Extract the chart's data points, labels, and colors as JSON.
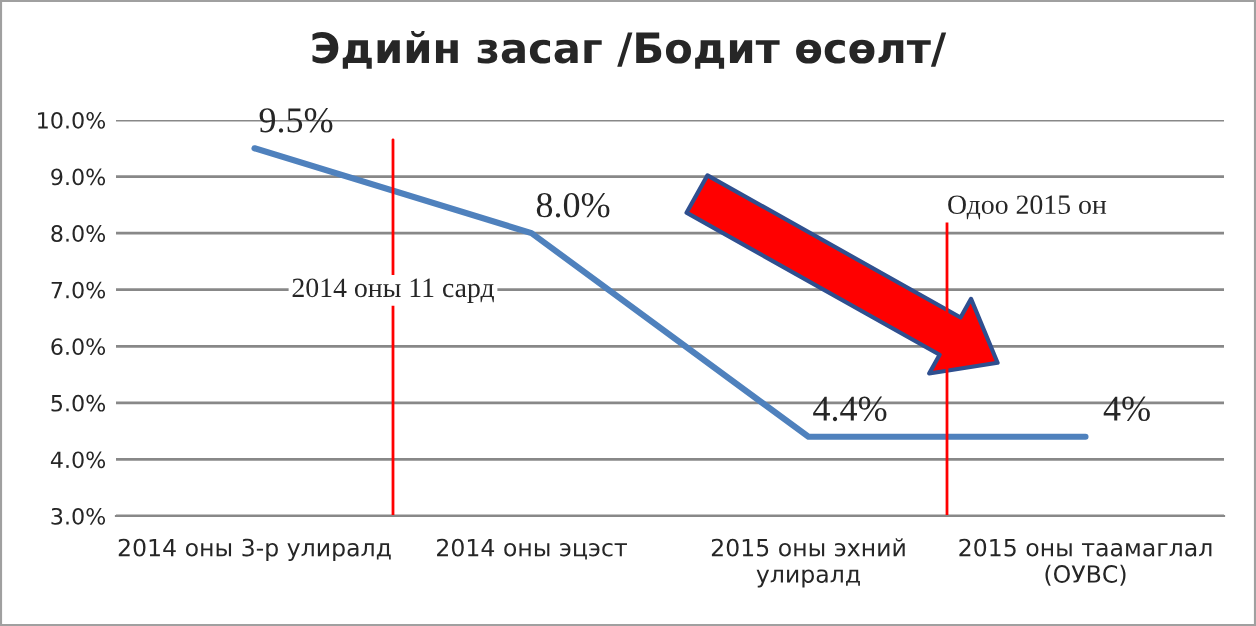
{
  "chart_data": {
    "type": "line",
    "title": "Эдийн засаг /Бодит өсөлт/",
    "categories": [
      "2014 оны 3-р улиралд",
      "2014 оны эцэст",
      "2015 оны эхний\nулиралд",
      "2015 оны таамаглал\n(ОУВС)"
    ],
    "series": [
      {
        "color": "#4f81bd",
        "values": [
          9.5,
          8.0,
          4.4,
          4.4
        ],
        "value_labels": [
          "9.5%",
          "8.0%",
          "4.4%",
          "4%"
        ]
      }
    ],
    "ylim": [
      3,
      10
    ],
    "yticks": [
      {
        "value": 3,
        "label": "3.0%"
      },
      {
        "value": 4,
        "label": "4.0%"
      },
      {
        "value": 5,
        "label": "5.0%"
      },
      {
        "value": 6,
        "label": "6.0%"
      },
      {
        "value": 7,
        "label": "7.0%"
      },
      {
        "value": 8,
        "label": "8.0%"
      },
      {
        "value": 9,
        "label": "9.0%"
      },
      {
        "value": 10,
        "label": "10.0%"
      }
    ],
    "grid": "y",
    "legend": false,
    "marker": "none",
    "line_style": "solid",
    "annotations": [
      "2014 оны 11 сард",
      "Одоо 2015 он"
    ]
  }
}
